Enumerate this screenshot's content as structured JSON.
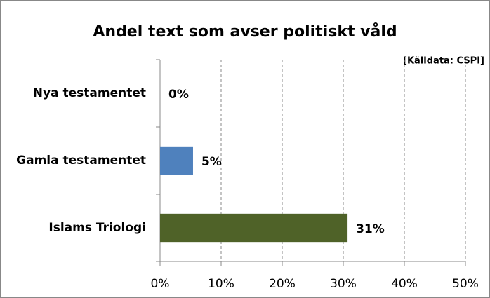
{
  "chart_data": {
    "type": "hbar",
    "title": "Andel text som avser politiskt våld",
    "annotation": "[Källdata: CSPI]",
    "categories": [
      "Nya testamentet",
      "Gamla testamentet",
      "Islams Triologi"
    ],
    "values": [
      0,
      5.4,
      30.7
    ],
    "value_labels": [
      "0%",
      "5%",
      "31%"
    ],
    "colors": [
      "#4f81bd",
      "#4f81bd",
      "#4f6228"
    ],
    "xlim": [
      0,
      50
    ],
    "xticks": [
      {
        "value": 0,
        "label": "0%"
      },
      {
        "value": 10,
        "label": "10%"
      },
      {
        "value": 20,
        "label": "20%"
      },
      {
        "value": 30,
        "label": "30%"
      },
      {
        "value": 40,
        "label": "40%"
      },
      {
        "value": 50,
        "label": "50%"
      }
    ],
    "grid": true
  }
}
